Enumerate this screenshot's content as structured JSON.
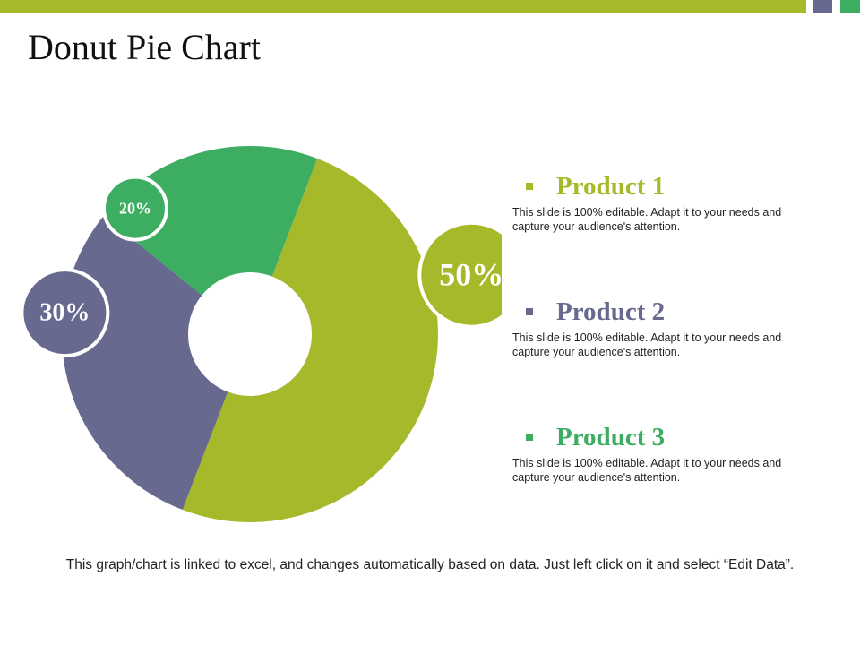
{
  "slide": {
    "title": "Donut Pie Chart",
    "footnote": "This graph/chart is linked to excel, and changes automatically based on data. Just left click on it and select “Edit Data”."
  },
  "colors": {
    "olive": "#a5b92a",
    "slate": "#67698f",
    "green": "#3dad62",
    "white": "#ffffff"
  },
  "chart_data": {
    "type": "pie",
    "title": "",
    "categories": [
      "Product 1",
      "Product 2",
      "Product 3"
    ],
    "values": [
      50,
      30,
      20
    ],
    "labels": [
      "50%",
      "30%",
      "20%"
    ],
    "colors": [
      "#a5b92a",
      "#67698f",
      "#3dad62"
    ],
    "legend": "right"
  },
  "legend": [
    {
      "title": "Product 1",
      "color": "#a5b92a",
      "desc": "This slide is 100% editable. Adapt it to your needs and capture your audience's attention."
    },
    {
      "title": "Product 2",
      "color": "#67698f",
      "desc": "This slide is 100% editable. Adapt it to your needs and capture your audience's attention."
    },
    {
      "title": "Product 3",
      "color": "#3dad62",
      "desc": "This slide is 100% editable. Adapt it to your needs and capture your audience's attention."
    }
  ]
}
